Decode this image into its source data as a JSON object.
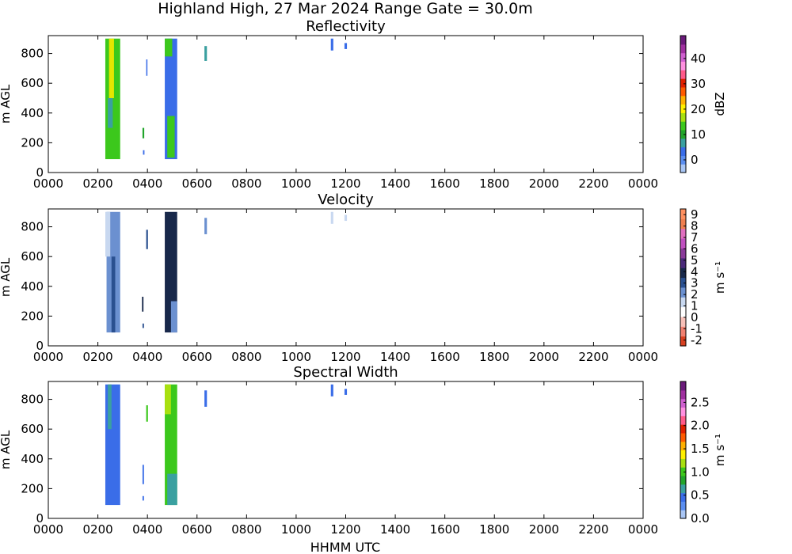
{
  "figure": {
    "suptitle": "Highland High, 27 Mar 2024 Range Gate = 30.0m",
    "xlabel": "HHMM UTC"
  },
  "chart_data": [
    {
      "type": "heatmap",
      "title": "Reflectivity",
      "ylabel": "m AGL",
      "xlim": [
        0,
        2400
      ],
      "ylim": [
        0,
        920
      ],
      "x_ticks": [
        "0000",
        "0200",
        "0400",
        "0600",
        "0800",
        "1000",
        "1200",
        "1400",
        "1600",
        "1800",
        "2000",
        "2200",
        "0000"
      ],
      "y_ticks": [
        0,
        200,
        400,
        600,
        800
      ],
      "colorbar": {
        "label": "dBZ",
        "range": [
          -5,
          49
        ],
        "ticks": [
          "0",
          "10",
          "20",
          "30",
          "40"
        ],
        "tick_values": [
          0,
          10,
          20,
          30,
          40
        ],
        "colors": [
          "#a9c6f5",
          "#5b8ef0",
          "#3a6de8",
          "#3aa0a0",
          "#22a52b",
          "#3cc81c",
          "#a8e010",
          "#fff000",
          "#ffb000",
          "#ff5a00",
          "#e02000",
          "#ff5a8a",
          "#ff90e0",
          "#d060d0",
          "#a030a0",
          "#6a1a7a"
        ]
      },
      "echoes": [
        {
          "x0": 230,
          "x1": 290,
          "y0": 90,
          "y1": 900,
          "color": "#3cc81c"
        },
        {
          "x0": 245,
          "x1": 265,
          "y0": 500,
          "y1": 900,
          "color": "#e6e600"
        },
        {
          "x0": 240,
          "x1": 260,
          "y0": 300,
          "y1": 500,
          "color": "#3aa0a0"
        },
        {
          "x0": 380,
          "x1": 387,
          "y0": 230,
          "y1": 300,
          "color": "#22a52b"
        },
        {
          "x0": 395,
          "x1": 400,
          "y0": 650,
          "y1": 760,
          "color": "#3a6de8"
        },
        {
          "x0": 382,
          "x1": 388,
          "y0": 120,
          "y1": 150,
          "color": "#3a6de8"
        },
        {
          "x0": 470,
          "x1": 520,
          "y0": 90,
          "y1": 900,
          "color": "#3a6de8"
        },
        {
          "x0": 470,
          "x1": 500,
          "y0": 780,
          "y1": 900,
          "color": "#3cc81c"
        },
        {
          "x0": 480,
          "x1": 510,
          "y0": 100,
          "y1": 380,
          "color": "#3cc81c"
        },
        {
          "x0": 630,
          "x1": 640,
          "y0": 750,
          "y1": 850,
          "color": "#3aa0a0"
        },
        {
          "x0": 1140,
          "x1": 1150,
          "y0": 820,
          "y1": 900,
          "color": "#3a6de8"
        },
        {
          "x0": 1195,
          "x1": 1205,
          "y0": 830,
          "y1": 870,
          "color": "#3a6de8"
        }
      ]
    },
    {
      "type": "heatmap",
      "title": "Velocity",
      "ylabel": "m s⁻¹ ",
      "xlim": [
        0,
        2400
      ],
      "ylim": [
        0,
        920
      ],
      "x_ticks": [
        "0000",
        "0200",
        "0400",
        "0600",
        "0800",
        "1000",
        "1200",
        "1400",
        "1600",
        "1800",
        "2000",
        "2200",
        "0000"
      ],
      "y_ticks": [
        0,
        200,
        400,
        600,
        800
      ],
      "panel_ylabel": "m AGL",
      "colorbar": {
        "label": "m s⁻¹",
        "range": [
          -2.5,
          9.5
        ],
        "ticks": [
          "-2",
          "-1",
          "0",
          "1",
          "2",
          "3",
          "4",
          "5",
          "6",
          "7",
          "8",
          "9"
        ],
        "tick_values": [
          -2,
          -1,
          0,
          1,
          2,
          3,
          4,
          5,
          6,
          7,
          8,
          9
        ],
        "colors": [
          "#d84020",
          "#f08070",
          "#f8c0b8",
          "#ffffff",
          "#c8d8f0",
          "#6b90d0",
          "#2a5090",
          "#18284a",
          "#4a2a7a",
          "#8a3a9a",
          "#c050c0",
          "#e070c0",
          "#f08050",
          "#ff9060"
        ]
      },
      "echoes": [
        {
          "x0": 235,
          "x1": 290,
          "y0": 90,
          "y1": 900,
          "color": "#6b90d0"
        },
        {
          "x0": 255,
          "x1": 270,
          "y0": 90,
          "y1": 600,
          "color": "#2a5090"
        },
        {
          "x0": 230,
          "x1": 250,
          "y0": 600,
          "y1": 900,
          "color": "#c8d8f0"
        },
        {
          "x0": 378,
          "x1": 384,
          "y0": 230,
          "y1": 330,
          "color": "#18284a"
        },
        {
          "x0": 395,
          "x1": 402,
          "y0": 650,
          "y1": 780,
          "color": "#2a5090"
        },
        {
          "x0": 380,
          "x1": 386,
          "y0": 120,
          "y1": 150,
          "color": "#2a5090"
        },
        {
          "x0": 470,
          "x1": 520,
          "y0": 90,
          "y1": 900,
          "color": "#18284a"
        },
        {
          "x0": 495,
          "x1": 520,
          "y0": 90,
          "y1": 300,
          "color": "#6b90d0"
        },
        {
          "x0": 630,
          "x1": 640,
          "y0": 750,
          "y1": 860,
          "color": "#6b90d0"
        },
        {
          "x0": 1140,
          "x1": 1150,
          "y0": 820,
          "y1": 900,
          "color": "#c8d8f0"
        },
        {
          "x0": 1195,
          "x1": 1205,
          "y0": 840,
          "y1": 880,
          "color": "#c8d8f0"
        }
      ]
    },
    {
      "type": "heatmap",
      "title": "Spectral Width",
      "ylabel": "m s⁻¹",
      "panel_ylabel": "m AGL",
      "xlim": [
        0,
        2400
      ],
      "ylim": [
        0,
        920
      ],
      "x_ticks": [
        "0000",
        "0200",
        "0400",
        "0600",
        "0800",
        "1000",
        "1200",
        "1400",
        "1600",
        "1800",
        "2000",
        "2200",
        "0000"
      ],
      "y_ticks": [
        0,
        200,
        400,
        600,
        800
      ],
      "colorbar": {
        "label": "m s⁻¹",
        "range": [
          0,
          2.95
        ],
        "ticks": [
          "0.0",
          "0.5",
          "1.0",
          "1.5",
          "2.0",
          "2.5"
        ],
        "tick_values": [
          0.0,
          0.5,
          1.0,
          1.5,
          2.0,
          2.5
        ],
        "colors": [
          "#a9c6f5",
          "#5b8ef0",
          "#3a6de8",
          "#3aa0a0",
          "#22a52b",
          "#3cc81c",
          "#a8e010",
          "#fff000",
          "#ffb000",
          "#ff5a00",
          "#e02000",
          "#ff5a8a",
          "#ff90e0",
          "#d060d0",
          "#a030a0",
          "#6a1a7a"
        ]
      },
      "echoes": [
        {
          "x0": 230,
          "x1": 290,
          "y0": 90,
          "y1": 900,
          "color": "#3a6de8"
        },
        {
          "x0": 240,
          "x1": 255,
          "y0": 600,
          "y1": 900,
          "color": "#3aa0a0"
        },
        {
          "x0": 380,
          "x1": 386,
          "y0": 230,
          "y1": 360,
          "color": "#3a6de8"
        },
        {
          "x0": 395,
          "x1": 402,
          "y0": 650,
          "y1": 760,
          "color": "#3cc81c"
        },
        {
          "x0": 380,
          "x1": 386,
          "y0": 120,
          "y1": 150,
          "color": "#3a6de8"
        },
        {
          "x0": 470,
          "x1": 520,
          "y0": 90,
          "y1": 900,
          "color": "#3cc81c"
        },
        {
          "x0": 470,
          "x1": 495,
          "y0": 700,
          "y1": 900,
          "color": "#a8e010"
        },
        {
          "x0": 480,
          "x1": 520,
          "y0": 90,
          "y1": 300,
          "color": "#3aa0a0"
        },
        {
          "x0": 630,
          "x1": 640,
          "y0": 750,
          "y1": 860,
          "color": "#3a6de8"
        },
        {
          "x0": 1140,
          "x1": 1150,
          "y0": 820,
          "y1": 900,
          "color": "#3a6de8"
        },
        {
          "x0": 1195,
          "x1": 1205,
          "y0": 830,
          "y1": 870,
          "color": "#3a6de8"
        }
      ]
    }
  ]
}
